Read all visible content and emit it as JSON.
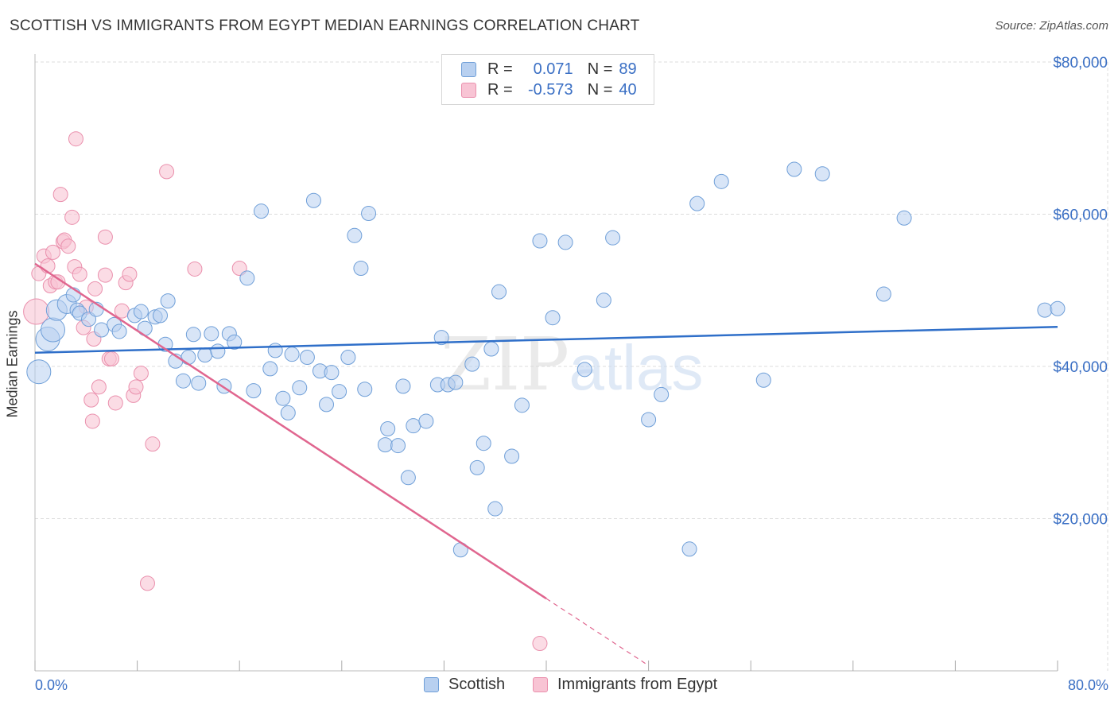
{
  "title": "SCOTTISH VS IMMIGRANTS FROM EGYPT MEDIAN EARNINGS CORRELATION CHART",
  "source": "Source: ZipAtlas.com",
  "watermark": {
    "zip": "ZIP",
    "atlas": "atlas"
  },
  "legend_top": {
    "scottish": {
      "r_label": "R =",
      "r_value": "0.071",
      "n_label": "N =",
      "n_value": "89"
    },
    "egypt": {
      "r_label": "R =",
      "r_value": "-0.573",
      "n_label": "N =",
      "n_value": "40"
    }
  },
  "colors": {
    "scottish_fill": "#b8d0f0",
    "scottish_stroke": "#6f9fd8",
    "scottish_line": "#2f6fc9",
    "egypt_fill": "#f8c4d4",
    "egypt_stroke": "#ea90ad",
    "egypt_line": "#e0668f",
    "axis_text": "#3a6fc4",
    "grid": "#dddddd"
  },
  "chart_data": {
    "type": "scatter",
    "title": "SCOTTISH VS IMMIGRANTS FROM EGYPT MEDIAN EARNINGS CORRELATION CHART",
    "xlabel": "",
    "ylabel": "Median Earnings",
    "xlim": [
      0,
      80
    ],
    "ylim": [
      0,
      84000
    ],
    "x_tick_labels": [
      "0.0%",
      "80.0%"
    ],
    "y_ticks": [
      20000,
      40000,
      60000,
      80000
    ],
    "y_tick_labels": [
      "$20,000",
      "$40,000",
      "$60,000",
      "$80,000"
    ],
    "grid": true,
    "legend": [
      "Scottish",
      "Immigrants from Egypt"
    ],
    "series": [
      {
        "name": "Scottish",
        "r": 0.071,
        "n": 89,
        "trend": {
          "x": [
            0,
            80
          ],
          "y": [
            41800,
            45200
          ]
        },
        "points": [
          [
            0.3,
            39300
          ],
          [
            1,
            43600
          ],
          [
            1.4,
            44800
          ],
          [
            1.7,
            47400
          ],
          [
            2.5,
            48200
          ],
          [
            3,
            49400
          ],
          [
            3.3,
            47400
          ],
          [
            3.5,
            47000
          ],
          [
            4.2,
            46200
          ],
          [
            4.8,
            47500
          ],
          [
            5.2,
            44800
          ],
          [
            6.2,
            45500
          ],
          [
            6.6,
            44600
          ],
          [
            7.8,
            46700
          ],
          [
            8.3,
            47200
          ],
          [
            8.6,
            45000
          ],
          [
            9.4,
            46500
          ],
          [
            9.8,
            46700
          ],
          [
            10.2,
            42900
          ],
          [
            10.4,
            48600
          ],
          [
            11,
            40700
          ],
          [
            11.6,
            38100
          ],
          [
            12,
            41200
          ],
          [
            12.4,
            44200
          ],
          [
            12.8,
            37800
          ],
          [
            13.3,
            41500
          ],
          [
            13.8,
            44300
          ],
          [
            14.3,
            42000
          ],
          [
            14.8,
            37400
          ],
          [
            15.2,
            44300
          ],
          [
            15.6,
            43200
          ],
          [
            16.6,
            51600
          ],
          [
            17.1,
            36800
          ],
          [
            17.7,
            60400
          ],
          [
            18.4,
            39700
          ],
          [
            18.8,
            42100
          ],
          [
            19.4,
            35800
          ],
          [
            19.8,
            33900
          ],
          [
            20.1,
            41600
          ],
          [
            20.7,
            37200
          ],
          [
            21.3,
            41200
          ],
          [
            21.8,
            61800
          ],
          [
            22.3,
            39400
          ],
          [
            22.8,
            35000
          ],
          [
            23.2,
            39200
          ],
          [
            23.8,
            36700
          ],
          [
            24.5,
            41200
          ],
          [
            25,
            57200
          ],
          [
            25.5,
            52900
          ],
          [
            25.8,
            37000
          ],
          [
            26.1,
            60100
          ],
          [
            27.4,
            29700
          ],
          [
            27.6,
            31800
          ],
          [
            28.4,
            29600
          ],
          [
            28.8,
            37400
          ],
          [
            29.2,
            25400
          ],
          [
            29.6,
            32200
          ],
          [
            30.6,
            32800
          ],
          [
            31.5,
            37600
          ],
          [
            31.8,
            43800
          ],
          [
            32.3,
            37600
          ],
          [
            32.9,
            37900
          ],
          [
            33.3,
            15900
          ],
          [
            34.2,
            40300
          ],
          [
            34.6,
            26700
          ],
          [
            35.1,
            29900
          ],
          [
            35.7,
            42300
          ],
          [
            36,
            21300
          ],
          [
            36.3,
            49800
          ],
          [
            37.3,
            28200
          ],
          [
            38.1,
            34900
          ],
          [
            39.5,
            56500
          ],
          [
            40.5,
            46400
          ],
          [
            41.5,
            56300
          ],
          [
            43,
            39600
          ],
          [
            44.5,
            48700
          ],
          [
            45.2,
            56900
          ],
          [
            48,
            33000
          ],
          [
            49,
            36300
          ],
          [
            51.2,
            16000
          ],
          [
            51.8,
            61400
          ],
          [
            53.7,
            64300
          ],
          [
            57,
            38200
          ],
          [
            59.4,
            65900
          ],
          [
            61.6,
            65300
          ],
          [
            66.4,
            49500
          ],
          [
            68,
            59500
          ],
          [
            79,
            47400
          ],
          [
            80,
            47600
          ]
        ]
      },
      {
        "name": "Immigrants from Egypt",
        "r": -0.573,
        "n": 40,
        "trend": {
          "x": [
            0,
            40
          ],
          "y": [
            53500,
            9500
          ]
        },
        "trend_dashed": {
          "x": [
            40,
            48
          ],
          "y": [
            9500,
            700
          ]
        },
        "points": [
          [
            0.1,
            47200
          ],
          [
            0.3,
            52200
          ],
          [
            0.7,
            54500
          ],
          [
            1,
            53200
          ],
          [
            1.2,
            50600
          ],
          [
            1.4,
            55000
          ],
          [
            1.6,
            51100
          ],
          [
            1.8,
            51100
          ],
          [
            2,
            62600
          ],
          [
            2.2,
            56400
          ],
          [
            2.3,
            56600
          ],
          [
            2.6,
            55800
          ],
          [
            2.9,
            59600
          ],
          [
            3.1,
            53100
          ],
          [
            3.2,
            69900
          ],
          [
            3.5,
            52100
          ],
          [
            3.8,
            45100
          ],
          [
            4,
            47800
          ],
          [
            4.4,
            35600
          ],
          [
            4.5,
            32800
          ],
          [
            4.6,
            43600
          ],
          [
            4.7,
            50200
          ],
          [
            5,
            37300
          ],
          [
            5.5,
            57000
          ],
          [
            5.5,
            52000
          ],
          [
            5.8,
            41000
          ],
          [
            6,
            41000
          ],
          [
            6.3,
            35200
          ],
          [
            6.8,
            47300
          ],
          [
            7.1,
            51000
          ],
          [
            7.4,
            52100
          ],
          [
            7.7,
            36200
          ],
          [
            7.9,
            37300
          ],
          [
            8.3,
            39100
          ],
          [
            8.8,
            11500
          ],
          [
            9.2,
            29800
          ],
          [
            10.3,
            65600
          ],
          [
            12.5,
            52800
          ],
          [
            16,
            52900
          ],
          [
            39.5,
            3600
          ]
        ]
      }
    ]
  },
  "bottom_legend": {
    "scottish": "Scottish",
    "egypt": "Immigrants from Egypt"
  }
}
